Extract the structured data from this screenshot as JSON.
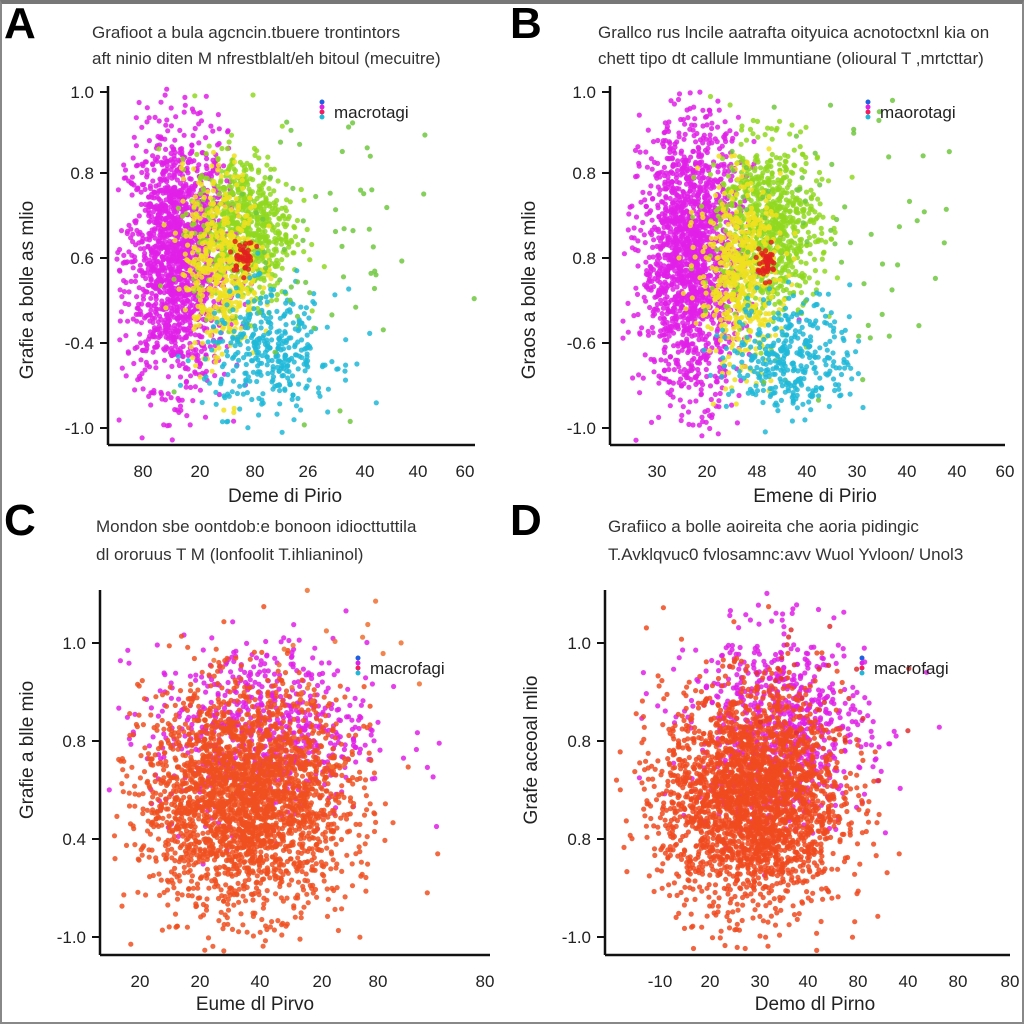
{
  "chart_data": [
    {
      "panel": "A",
      "type": "scatter",
      "title": [
        "Grafioot a bula agcncin.tbuere trontintors",
        "aft ninio diten M nfrestblalt/eh bitoul (mecuitre)"
      ],
      "xlabel": "Deme di Pirio",
      "ylabel": "Grafie a bolle as mlio",
      "xticks": [
        "80",
        "20",
        "80",
        "26",
        "40",
        "40",
        "60"
      ],
      "yticks": [
        "-1.0",
        "-0.4",
        "0.6",
        "0.8",
        "1.0"
      ],
      "legend": {
        "label": "macrotagi",
        "position": "top-right"
      },
      "grid": false,
      "clusters_in_tick_index_units": [
        {
          "color": "#e020e8",
          "x": 0.6,
          "y": 2.0,
          "sx": 0.45,
          "sy": 0.75,
          "n": 1600
        },
        {
          "color": "#90d820",
          "x": 1.8,
          "y": 2.35,
          "sx": 0.45,
          "sy": 0.45,
          "n": 700
        },
        {
          "color": "#f0e020",
          "x": 1.4,
          "y": 1.9,
          "sx": 0.35,
          "sy": 0.55,
          "n": 450
        },
        {
          "color": "#20b8d8",
          "x": 2.3,
          "y": 0.9,
          "sx": 0.6,
          "sy": 0.35,
          "n": 350
        },
        {
          "color": "#e02020",
          "x": 1.8,
          "y": 2.0,
          "sx": 0.1,
          "sy": 0.1,
          "n": 40
        },
        {
          "color": "#70c840",
          "x": 3.2,
          "y": 2.2,
          "sx": 1.1,
          "sy": 0.9,
          "n": 60
        }
      ]
    },
    {
      "panel": "B",
      "type": "scatter",
      "title": [
        "Grallco rus lncile aatrafta oityuica acnotoctxnl kia on",
        "chett tipo dt callule lmmuntiane (olioural T ,mrtcttar)"
      ],
      "xlabel": "Emene di Pirio",
      "ylabel": "Graos a bolle as mlio",
      "xticks": [
        "30",
        "20",
        "48",
        "40",
        "30",
        "40",
        "40",
        "60"
      ],
      "yticks": [
        "-1.0",
        "-0.6",
        "0.8",
        "0.8",
        "1.0"
      ],
      "legend": {
        "label": "maorotagi",
        "position": "top-right"
      },
      "grid": false,
      "clusters_in_tick_index_units": [
        {
          "color": "#e020e8",
          "x": 0.7,
          "y": 2.0,
          "sx": 0.5,
          "sy": 0.8,
          "n": 1700
        },
        {
          "color": "#90d820",
          "x": 2.25,
          "y": 2.35,
          "sx": 0.5,
          "sy": 0.5,
          "n": 800
        },
        {
          "color": "#f0e020",
          "x": 1.65,
          "y": 1.8,
          "sx": 0.4,
          "sy": 0.55,
          "n": 500
        },
        {
          "color": "#20b8d8",
          "x": 2.7,
          "y": 0.85,
          "sx": 0.6,
          "sy": 0.35,
          "n": 350
        },
        {
          "color": "#e02020",
          "x": 2.2,
          "y": 1.95,
          "sx": 0.1,
          "sy": 0.1,
          "n": 40
        },
        {
          "color": "#70c840",
          "x": 3.8,
          "y": 2.2,
          "sx": 1.3,
          "sy": 0.9,
          "n": 60
        }
      ]
    },
    {
      "panel": "C",
      "type": "scatter",
      "title": [
        "Mondon sbe oontdob:e bonoon idiocttuttila",
        "dl ororuus T M (lonfoolit T.ihlianinol)"
      ],
      "xlabel": "Eume dl Pirvo",
      "ylabel": "Grafie a blle mio",
      "xticks": [
        "20",
        "20",
        "40",
        "20",
        "80",
        "80"
      ],
      "yticks": [
        "-1.0",
        "0.4",
        "0.8",
        "1.0"
      ],
      "legend": {
        "label": "macrofagi",
        "position": "top-right"
      },
      "grid": false,
      "clusters_in_tick_index_units": [
        {
          "color": "#e020e8",
          "x": 2.0,
          "y": 2.1,
          "sx": 0.9,
          "sy": 0.45,
          "n": 700
        },
        {
          "color": "#f05020",
          "x": 1.75,
          "y": 1.4,
          "sx": 0.85,
          "sy": 0.55,
          "n": 2600
        },
        {
          "color": "#f07030",
          "x": 3.0,
          "y": 2.5,
          "sx": 0.7,
          "sy": 0.5,
          "n": 25
        }
      ]
    },
    {
      "panel": "D",
      "type": "scatter",
      "title": [
        "Grafiico a bolle aoireita che aoria pidingic",
        "T.Avklqvuc0 fvlosamnc:avv Wuol Yvloon/ Unol3"
      ],
      "xlabel": "Demo dl Pirno",
      "ylabel": "Grafe aceoal mlio",
      "xticks": [
        "-10",
        "20",
        "30",
        "40",
        "80",
        "40",
        "80",
        "80"
      ],
      "yticks": [
        "-1.0",
        "0.8",
        "0.8",
        "1.0"
      ],
      "legend": {
        "label": "macrofagi",
        "position": "top-right"
      },
      "grid": false,
      "clusters_in_tick_index_units": [
        {
          "color": "#e020e8",
          "x": 2.4,
          "y": 2.1,
          "sx": 0.9,
          "sy": 0.5,
          "n": 800
        },
        {
          "color": "#f04a20",
          "x": 1.85,
          "y": 1.4,
          "sx": 0.9,
          "sy": 0.55,
          "n": 2600
        },
        {
          "color": "#e03030",
          "x": 3.2,
          "y": 2.5,
          "sx": 0.8,
          "sy": 0.6,
          "n": 25
        }
      ]
    }
  ]
}
